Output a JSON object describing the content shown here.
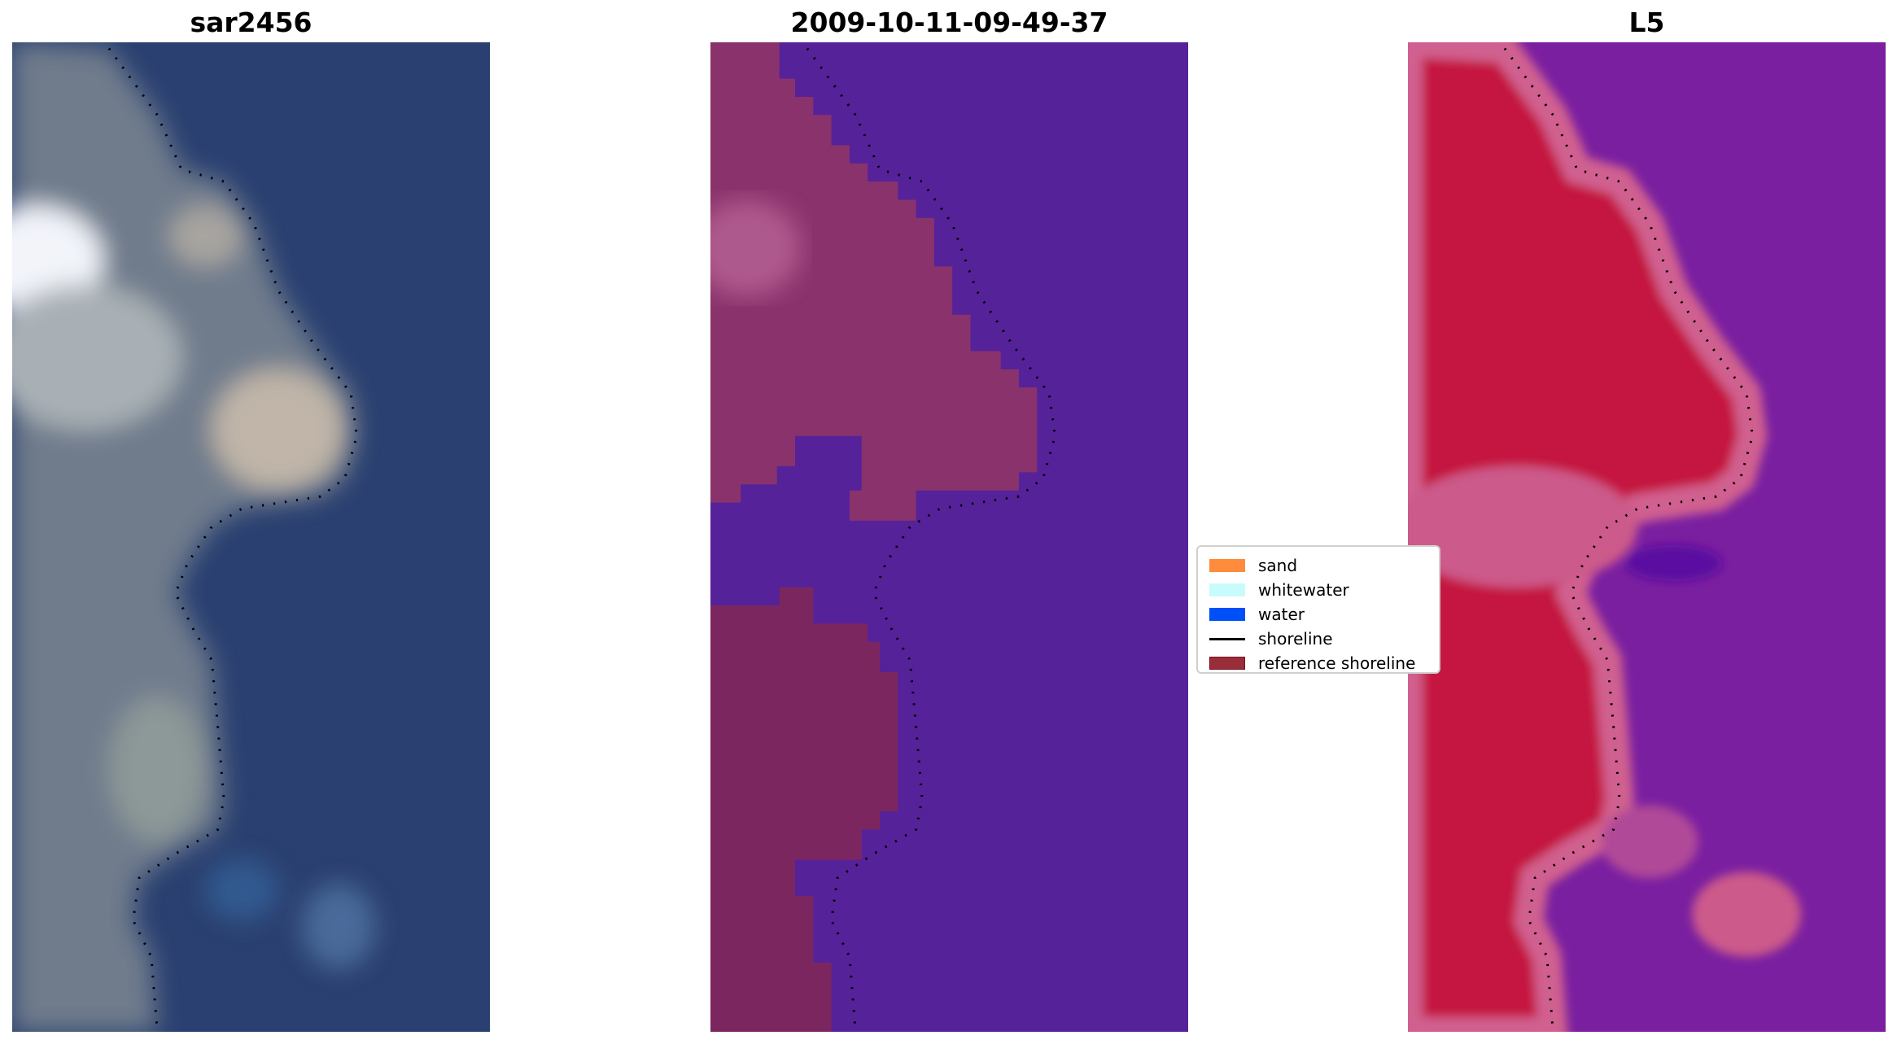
{
  "panels": [
    {
      "title": "sar2456"
    },
    {
      "title": "2009-10-11-09-49-37"
    },
    {
      "title": "L5"
    }
  ],
  "legend": {
    "items": [
      {
        "label": "sand",
        "color": "#ff8c3c",
        "kind": "patch"
      },
      {
        "label": "whitewater",
        "color": "#c8fcfc",
        "kind": "patch"
      },
      {
        "label": "water",
        "color": "#0050f8",
        "kind": "patch"
      },
      {
        "label": "shoreline",
        "color": "#000000",
        "kind": "line"
      },
      {
        "label": "reference shoreline",
        "color": "#9a2d3a",
        "kind": "patch"
      }
    ]
  },
  "colors": {
    "rgb_water": "#2a4070",
    "rgb_land": "#7c8593",
    "class_water": "#55229a",
    "class_land": "#8a326c",
    "index_water": "#7a1fa0",
    "index_land": "#c4123f",
    "index_edge": "#d0608f"
  }
}
